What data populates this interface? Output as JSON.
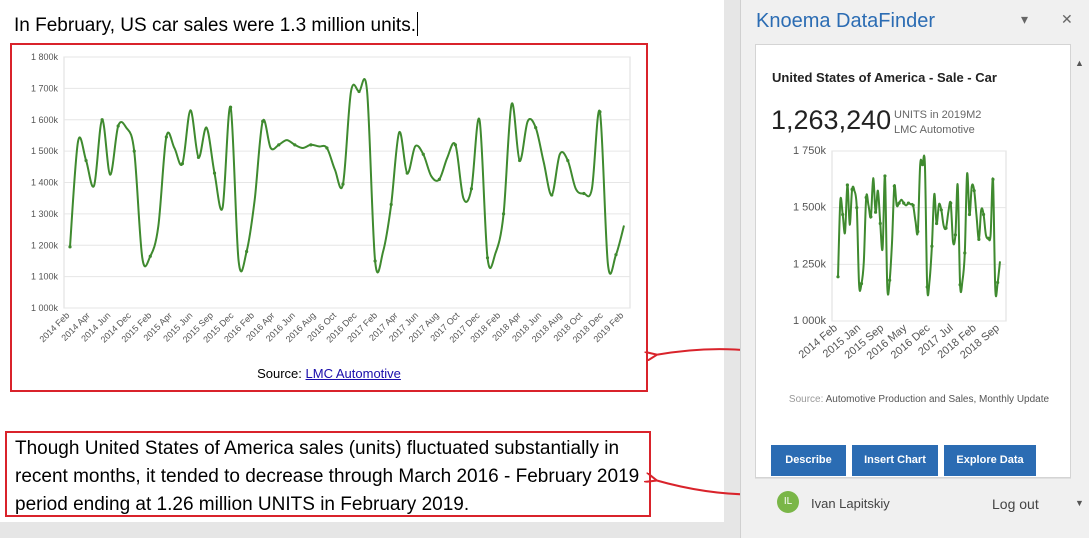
{
  "document": {
    "line1": "In February, US car sales were 1.3 million units.",
    "source_label": "Source:",
    "source_link": "LMC Automotive",
    "paragraph": "Though United States of America sales (units) fluctuated substantially in recent months, it tended to decrease through March 2016 - February 2019 period ending at 1.26 million UNITS in February 2019."
  },
  "pane": {
    "title": "Knoema DataFinder",
    "dropdown_icon": "chevron-down-icon",
    "close_icon": "close-icon",
    "card_title": "United States of America - Sale - Car",
    "value": "1,263,240",
    "units_line1": "UNITS in 2019M2",
    "units_line2": "LMC Automotive",
    "source_prefix": "Source:",
    "source_text": "Automotive Production and Sales, Monthly Update",
    "buttons": {
      "describe": "Describe",
      "insert_chart": "Insert Chart",
      "explore_data": "Explore Data"
    },
    "user_initials": "IL",
    "user_name": "Ivan Lapitskiy",
    "logout": "Log out"
  },
  "chart_data": [
    {
      "type": "line",
      "series_color": "#3f8a2f",
      "ylim": [
        1000,
        1800
      ],
      "yticks": [
        "1 000k",
        "1 100k",
        "1 200k",
        "1 300k",
        "1 400k",
        "1 500k",
        "1 600k",
        "1 700k",
        "1 800k"
      ],
      "xticks": [
        "2014 Feb",
        "2014 Apr",
        "2014 Jun",
        "2014 Dec",
        "2015 Feb",
        "2015 Apr",
        "2015 Jun",
        "2015 Sep",
        "2015 Dec",
        "2016 Feb",
        "2016 Apr",
        "2016 Jun",
        "2016 Aug",
        "2016 Oct",
        "2016 Dec",
        "2017 Feb",
        "2017 Apr",
        "2017 Jun",
        "2017 Aug",
        "2017 Oct",
        "2017 Dec",
        "2018 Feb",
        "2018 Apr",
        "2018 Jun",
        "2018 Aug",
        "2018 Oct",
        "2018 Dec",
        "2019 Feb"
      ],
      "values": [
        1195,
        1530,
        1470,
        1390,
        1600,
        1425,
        1580,
        1575,
        1500,
        1160,
        1165,
        1260,
        1545,
        1510,
        1460,
        1630,
        1480,
        1575,
        1430,
        1320,
        1640,
        1150,
        1180,
        1345,
        1595,
        1510,
        1520,
        1535,
        1520,
        1510,
        1520,
        1515,
        1510,
        1440,
        1395,
        1690,
        1690,
        1690,
        1150,
        1180,
        1330,
        1560,
        1430,
        1515,
        1490,
        1420,
        1410,
        1480,
        1520,
        1350,
        1380,
        1600,
        1160,
        1175,
        1300,
        1650,
        1470,
        1595,
        1575,
        1465,
        1360,
        1490,
        1470,
        1380,
        1365,
        1380,
        1625,
        1140,
        1170,
        1263
      ]
    },
    {
      "type": "line",
      "series_color": "#3f8a2f",
      "ylim": [
        1000,
        1750
      ],
      "yticks": [
        "1 000k",
        "1 250k",
        "1 500k",
        "1 750k"
      ],
      "xticks": [
        "2014 Feb",
        "2015 Jan",
        "2015 Sep",
        "2016 May",
        "2016 Dec",
        "2017 Jul",
        "2018 Feb",
        "2018 Sep"
      ],
      "values": [
        1195,
        1530,
        1470,
        1390,
        1600,
        1425,
        1580,
        1575,
        1500,
        1160,
        1165,
        1260,
        1545,
        1510,
        1460,
        1630,
        1480,
        1575,
        1430,
        1320,
        1640,
        1150,
        1180,
        1345,
        1595,
        1510,
        1520,
        1535,
        1520,
        1510,
        1520,
        1515,
        1510,
        1440,
        1395,
        1690,
        1690,
        1690,
        1150,
        1180,
        1330,
        1560,
        1430,
        1515,
        1490,
        1420,
        1410,
        1480,
        1520,
        1350,
        1380,
        1600,
        1160,
        1175,
        1300,
        1650,
        1470,
        1595,
        1575,
        1465,
        1360,
        1490,
        1470,
        1380,
        1365,
        1380,
        1625,
        1140,
        1170,
        1263
      ]
    }
  ]
}
